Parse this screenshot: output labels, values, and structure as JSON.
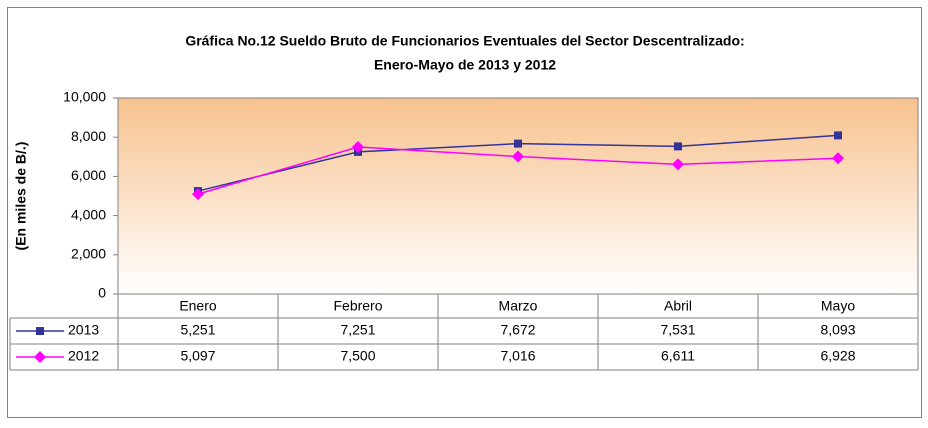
{
  "chart_data": {
    "type": "line",
    "title": "Gráfica No.12 Sueldo Bruto de Funcionarios Eventuales del Sector Descentralizado:",
    "subtitle": "Enero-Mayo de 2013 y 2012",
    "y_label": "(En miles de B/.)",
    "categories": [
      "Enero",
      "Febrero",
      "Marzo",
      "Abril",
      "Mayo"
    ],
    "series": [
      {
        "name": "2013",
        "color": "#333399",
        "marker": "square",
        "values": [
          5251,
          7251,
          7672,
          7531,
          8093
        ],
        "value_labels": [
          "5,251",
          "7,251",
          "7,672",
          "7,531",
          "8,093"
        ]
      },
      {
        "name": "2012",
        "color": "#ff00ff",
        "marker": "diamond",
        "values": [
          5097,
          7500,
          7016,
          6611,
          6928
        ],
        "value_labels": [
          "5,097",
          "7,500",
          "7,016",
          "6,611",
          "6,928"
        ]
      }
    ],
    "ylim": [
      0,
      10000
    ],
    "yticks": [
      0,
      {
        "value": 2000,
        "label": "2,000"
      },
      {
        "value": 4000,
        "label": "4,000"
      },
      {
        "value": 6000,
        "label": "6,000"
      },
      {
        "value": 8000,
        "label": "8,000"
      },
      {
        "value": 10000,
        "label": "10,000"
      }
    ],
    "grid": false,
    "data_table": true
  }
}
